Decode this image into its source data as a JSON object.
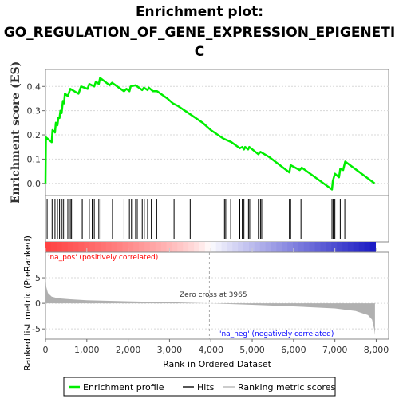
{
  "title_lines": [
    "Enrichment plot:",
    "GO_REGULATION_OF_GENE_EXPRESSION_EPIGENETI",
    "C"
  ],
  "colors": {
    "enrichment_line": "#00ee00",
    "hits": "#000000",
    "ranking_fill": "#b0b0b0",
    "pos_label": "#ff0000",
    "neg_label": "#0000ff",
    "zero_line": "#aaaaaa"
  },
  "chart_data": [
    {
      "type": "line",
      "name": "enrichment-profile",
      "ylabel": "Enrichment score (ES)",
      "xlim": [
        0,
        8300
      ],
      "ylim": [
        -0.05,
        0.47
      ],
      "yticks": [
        "0.4",
        "0.3",
        "0.2",
        "0.1",
        "0.0"
      ],
      "ytick_values": [
        0.4,
        0.3,
        0.2,
        0.1,
        0.0
      ],
      "points": [
        [
          0,
          0.0
        ],
        [
          10,
          0.19
        ],
        [
          150,
          0.17
        ],
        [
          170,
          0.22
        ],
        [
          230,
          0.21
        ],
        [
          250,
          0.25
        ],
        [
          290,
          0.24
        ],
        [
          310,
          0.27
        ],
        [
          340,
          0.27
        ],
        [
          360,
          0.3
        ],
        [
          390,
          0.29
        ],
        [
          420,
          0.34
        ],
        [
          450,
          0.33
        ],
        [
          470,
          0.37
        ],
        [
          540,
          0.36
        ],
        [
          600,
          0.39
        ],
        [
          800,
          0.37
        ],
        [
          860,
          0.4
        ],
        [
          1020,
          0.39
        ],
        [
          1060,
          0.41
        ],
        [
          1180,
          0.4
        ],
        [
          1220,
          0.42
        ],
        [
          1290,
          0.41
        ],
        [
          1320,
          0.435
        ],
        [
          1550,
          0.405
        ],
        [
          1610,
          0.415
        ],
        [
          1900,
          0.38
        ],
        [
          1960,
          0.39
        ],
        [
          2030,
          0.38
        ],
        [
          2060,
          0.4
        ],
        [
          2180,
          0.405
        ],
        [
          2340,
          0.385
        ],
        [
          2380,
          0.395
        ],
        [
          2470,
          0.385
        ],
        [
          2500,
          0.395
        ],
        [
          2600,
          0.38
        ],
        [
          2700,
          0.38
        ],
        [
          2950,
          0.35
        ],
        [
          3080,
          0.33
        ],
        [
          3200,
          0.32
        ],
        [
          3500,
          0.285
        ],
        [
          3800,
          0.25
        ],
        [
          4000,
          0.22
        ],
        [
          4300,
          0.185
        ],
        [
          4500,
          0.17
        ],
        [
          4700,
          0.145
        ],
        [
          4760,
          0.15
        ],
        [
          4800,
          0.14
        ],
        [
          4830,
          0.15
        ],
        [
          4900,
          0.14
        ],
        [
          4930,
          0.15
        ],
        [
          5150,
          0.12
        ],
        [
          5200,
          0.13
        ],
        [
          5400,
          0.11
        ],
        [
          5900,
          0.045
        ],
        [
          5930,
          0.075
        ],
        [
          6150,
          0.055
        ],
        [
          6200,
          0.065
        ],
        [
          6930,
          -0.025
        ],
        [
          6950,
          0.01
        ],
        [
          7000,
          0.04
        ],
        [
          7100,
          0.025
        ],
        [
          7130,
          0.06
        ],
        [
          7200,
          0.055
        ],
        [
          7250,
          0.09
        ],
        [
          7960,
          0.0
        ]
      ]
    },
    {
      "type": "bar",
      "name": "hits",
      "x": [
        40,
        160,
        230,
        290,
        340,
        390,
        430,
        470,
        540,
        600,
        630,
        860,
        890,
        1060,
        1130,
        1180,
        1290,
        1340,
        1620,
        1900,
        2030,
        2080,
        2100,
        2180,
        2220,
        2340,
        2390,
        2470,
        2560,
        2690,
        3110,
        3500,
        4330,
        4360,
        4480,
        4700,
        4760,
        4800,
        4910,
        4940,
        5150,
        5200,
        5230,
        5900,
        5930,
        6180,
        6930,
        6960,
        7000,
        7130,
        7240
      ]
    },
    {
      "type": "area",
      "name": "ranked-list-metric",
      "ylabel": "Ranked list metric (PreRanked)",
      "xlabel": "Rank in Ordered Dataset",
      "xlim": [
        0,
        8300
      ],
      "ylim": [
        -7,
        10
      ],
      "yticks": [
        "5",
        "0",
        "-5"
      ],
      "ytick_values": [
        5,
        0,
        -5
      ],
      "xticks": [
        "0",
        "1,000",
        "2,000",
        "3,000",
        "4,000",
        "5,000",
        "6,000",
        "7,000",
        "8,000"
      ],
      "xtick_values": [
        0,
        1000,
        2000,
        3000,
        4000,
        5000,
        6000,
        7000,
        8000
      ],
      "points": [
        [
          0,
          5.5
        ],
        [
          20,
          3.2
        ],
        [
          60,
          2.0
        ],
        [
          150,
          1.3
        ],
        [
          300,
          1.0
        ],
        [
          600,
          0.8
        ],
        [
          1000,
          0.6
        ],
        [
          2000,
          0.4
        ],
        [
          3000,
          0.2
        ],
        [
          3965,
          0.0
        ],
        [
          5000,
          -0.3
        ],
        [
          6000,
          -0.6
        ],
        [
          7000,
          -1.0
        ],
        [
          7500,
          -1.5
        ],
        [
          7800,
          -2.3
        ],
        [
          7900,
          -3.2
        ],
        [
          7950,
          -5.0
        ],
        [
          7970,
          -6.2
        ]
      ],
      "zero_cross": 3965,
      "annotations": {
        "zero_cross": "Zero cross at 3965",
        "na_pos": "'na_pos' (positively correlated)",
        "na_neg": "'na_neg' (negatively correlated)"
      }
    }
  ],
  "legend": {
    "items": [
      {
        "label": "Enrichment profile",
        "color": "#00ee00"
      },
      {
        "label": "Hits",
        "color": "#555555"
      },
      {
        "label": "Ranking metric scores",
        "color": "#cccccc"
      }
    ]
  }
}
